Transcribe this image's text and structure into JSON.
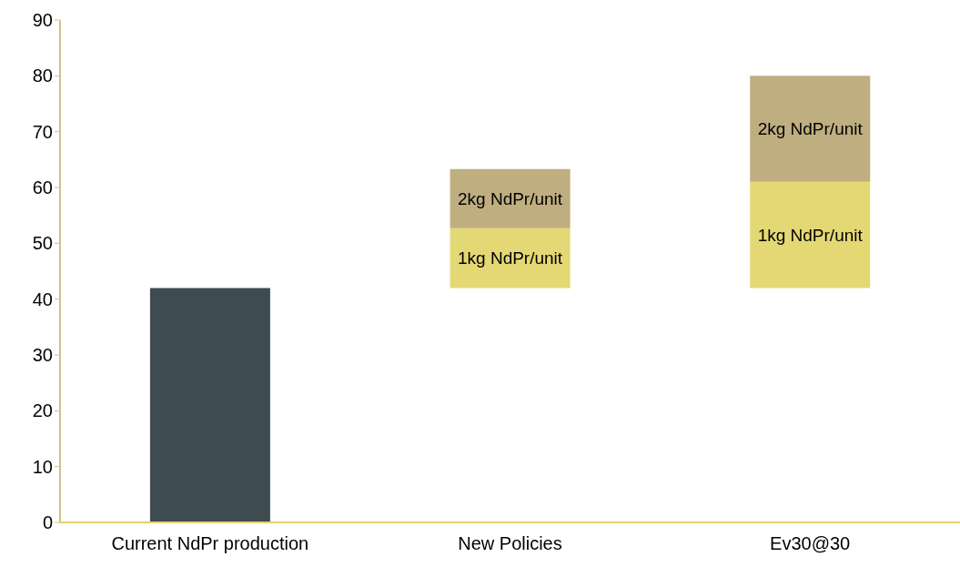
{
  "chart_data": {
    "type": "bar",
    "categories": [
      "Current NdPr production",
      "New Policies",
      "Ev30@30"
    ],
    "ylim": [
      0,
      90
    ],
    "yticks": [
      0,
      10,
      20,
      30,
      40,
      50,
      60,
      70,
      80,
      90
    ],
    "grid": false,
    "legend": false,
    "series": [
      {
        "color": "#3e4b51",
        "values": [
          42,
          null,
          null
        ]
      },
      {
        "name": "1kg NdPr/unit",
        "color": "#e3d874",
        "base": [
          null,
          42,
          42
        ],
        "values": [
          null,
          10.7,
          19
        ]
      },
      {
        "name": "2kg NdPr/unit",
        "color": "#bfae80",
        "base": [
          null,
          52.7,
          61
        ],
        "values": [
          null,
          10.6,
          19
        ]
      }
    ]
  }
}
